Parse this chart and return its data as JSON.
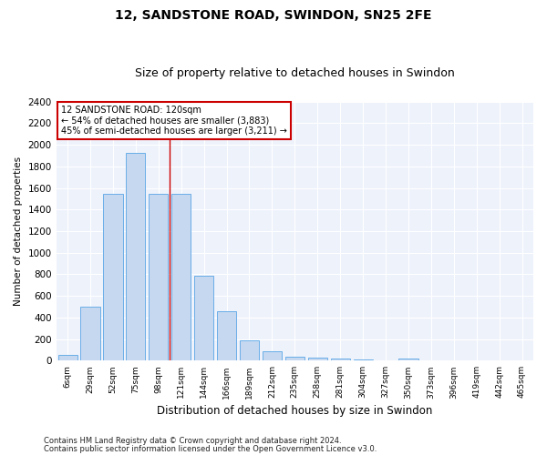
{
  "title": "12, SANDSTONE ROAD, SWINDON, SN25 2FE",
  "subtitle": "Size of property relative to detached houses in Swindon",
  "xlabel": "Distribution of detached houses by size in Swindon",
  "ylabel": "Number of detached properties",
  "footnote1": "Contains HM Land Registry data © Crown copyright and database right 2024.",
  "footnote2": "Contains public sector information licensed under the Open Government Licence v3.0.",
  "annotation_line1": "12 SANDSTONE ROAD: 120sqm",
  "annotation_line2": "← 54% of detached houses are smaller (3,883)",
  "annotation_line3": "45% of semi-detached houses are larger (3,211) →",
  "categories": [
    "6sqm",
    "29sqm",
    "52sqm",
    "75sqm",
    "98sqm",
    "121sqm",
    "144sqm",
    "166sqm",
    "189sqm",
    "212sqm",
    "235sqm",
    "258sqm",
    "281sqm",
    "304sqm",
    "327sqm",
    "350sqm",
    "373sqm",
    "396sqm",
    "419sqm",
    "442sqm",
    "465sqm"
  ],
  "values": [
    50,
    500,
    1550,
    1930,
    1550,
    1550,
    790,
    460,
    190,
    90,
    40,
    30,
    20,
    10,
    0,
    20,
    0,
    0,
    0,
    0,
    0
  ],
  "bar_color": "#c5d8f0",
  "bar_edge_color": "#6aaee8",
  "marker_color": "#cc0000",
  "background_color": "#eef2fb",
  "ylim": [
    0,
    2400
  ],
  "yticks": [
    0,
    200,
    400,
    600,
    800,
    1000,
    1200,
    1400,
    1600,
    1800,
    2000,
    2200,
    2400
  ],
  "annotation_box_color": "#cc0000",
  "title_fontsize": 10,
  "subtitle_fontsize": 9,
  "red_line_index": 5
}
